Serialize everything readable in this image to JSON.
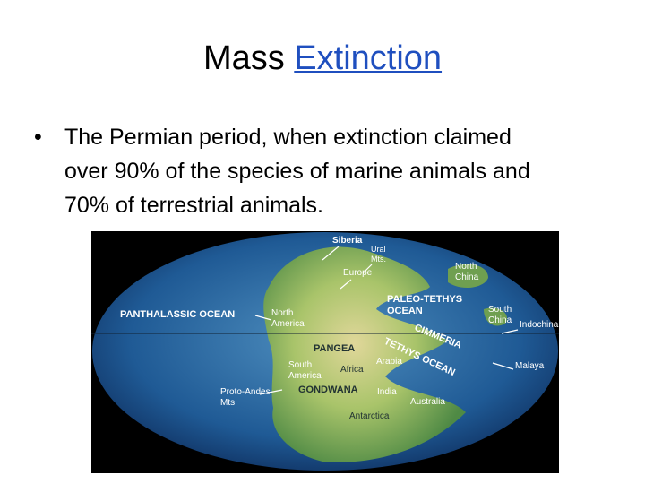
{
  "title": {
    "text": "Mass",
    "link": "Extinction"
  },
  "bullet": {
    "lines": [
      "The Permian period, when extinction claimed",
      "over 90% of the species of marine animals and",
      "70% of terrestrial animals."
    ]
  },
  "map": {
    "labels": [
      {
        "lines": [
          "Siberia"
        ]
      },
      {
        "lines": [
          "Ural",
          "Mts."
        ]
      },
      {
        "lines": [
          "Europe"
        ]
      },
      {
        "lines": [
          "North",
          "China"
        ]
      },
      {
        "lines": [
          "PALEO-TETHYS",
          "OCEAN"
        ]
      },
      {
        "lines": [
          "South",
          "China"
        ]
      },
      {
        "lines": [
          "Indochina"
        ]
      },
      {
        "lines": [
          "PANTHALASSIC OCEAN"
        ]
      },
      {
        "lines": [
          "North",
          "America"
        ]
      },
      {
        "lines": [
          "PANGEA"
        ]
      },
      {
        "lines": [
          "CIMMERIA"
        ]
      },
      {
        "lines": [
          "TETHYS OCEAN"
        ]
      },
      {
        "lines": [
          "Arabia"
        ]
      },
      {
        "lines": [
          "Malaya"
        ]
      },
      {
        "lines": [
          "South",
          "America"
        ]
      },
      {
        "lines": [
          "Africa"
        ]
      },
      {
        "lines": [
          "Proto-Andes",
          "Mts."
        ]
      },
      {
        "lines": [
          "GONDWANA"
        ]
      },
      {
        "lines": [
          "India"
        ]
      },
      {
        "lines": [
          "Australia"
        ]
      },
      {
        "lines": [
          "Antarctica"
        ]
      }
    ]
  }
}
